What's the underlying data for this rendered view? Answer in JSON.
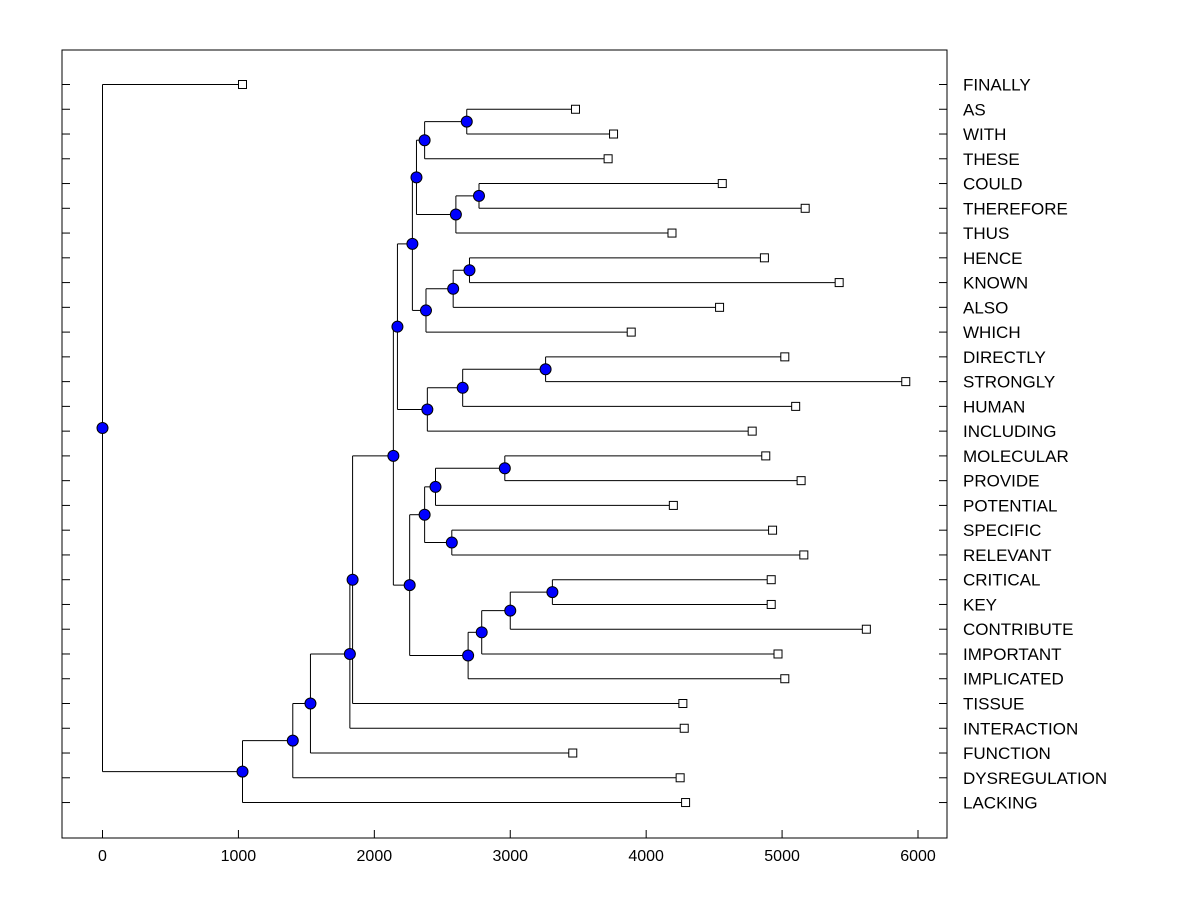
{
  "chart_data": {
    "type": "dendrogram",
    "orientation": "horizontal",
    "xlim": [
      -300,
      6200
    ],
    "x_ticks": [
      0,
      1000,
      2000,
      3000,
      4000,
      5000,
      6000
    ],
    "leaves": [
      {
        "label": "FINALLY",
        "value": 1030
      },
      {
        "label": "AS",
        "value": 3480
      },
      {
        "label": "WITH",
        "value": 3760
      },
      {
        "label": "THESE",
        "value": 3720
      },
      {
        "label": "COULD",
        "value": 4560
      },
      {
        "label": "THEREFORE",
        "value": 5170
      },
      {
        "label": "THUS",
        "value": 4190
      },
      {
        "label": "HENCE",
        "value": 4870
      },
      {
        "label": "KNOWN",
        "value": 5420
      },
      {
        "label": "ALSO",
        "value": 4540
      },
      {
        "label": "WHICH",
        "value": 3890
      },
      {
        "label": "DIRECTLY",
        "value": 5020
      },
      {
        "label": "STRONGLY",
        "value": 5910
      },
      {
        "label": "HUMAN",
        "value": 5100
      },
      {
        "label": "INCLUDING",
        "value": 4780
      },
      {
        "label": "MOLECULAR",
        "value": 4880
      },
      {
        "label": "PROVIDE",
        "value": 5140
      },
      {
        "label": "POTENTIAL",
        "value": 4200
      },
      {
        "label": "SPECIFIC",
        "value": 4930
      },
      {
        "label": "RELEVANT",
        "value": 5160
      },
      {
        "label": "CRITICAL",
        "value": 4920
      },
      {
        "label": "KEY",
        "value": 4920
      },
      {
        "label": "CONTRIBUTE",
        "value": 5620
      },
      {
        "label": "IMPORTANT",
        "value": 4970
      },
      {
        "label": "IMPLICATED",
        "value": 5020
      },
      {
        "label": "TISSUE",
        "value": 4270
      },
      {
        "label": "INTERACTION",
        "value": 4280
      },
      {
        "label": "FUNCTION",
        "value": 3460
      },
      {
        "label": "DYSREGULATION",
        "value": 4250
      },
      {
        "label": "LACKING",
        "value": 4290
      }
    ],
    "merges": [
      {
        "id": "m1",
        "value": 2680,
        "children": [
          "AS",
          "WITH"
        ]
      },
      {
        "id": "m2",
        "value": 2370,
        "children": [
          "m1",
          "THESE"
        ]
      },
      {
        "id": "m3",
        "value": 2770,
        "children": [
          "COULD",
          "THEREFORE"
        ]
      },
      {
        "id": "m4",
        "value": 2600,
        "children": [
          "m3",
          "THUS"
        ]
      },
      {
        "id": "m5",
        "value": 2310,
        "children": [
          "m2",
          "m4"
        ]
      },
      {
        "id": "m6",
        "value": 2700,
        "children": [
          "HENCE",
          "KNOWN"
        ]
      },
      {
        "id": "m7",
        "value": 2580,
        "children": [
          "m6",
          "ALSO"
        ]
      },
      {
        "id": "m8",
        "value": 2380,
        "children": [
          "m7",
          "WHICH"
        ]
      },
      {
        "id": "m9",
        "value": 2280,
        "children": [
          "m5",
          "m8"
        ]
      },
      {
        "id": "m10",
        "value": 3260,
        "children": [
          "DIRECTLY",
          "STRONGLY"
        ]
      },
      {
        "id": "m11",
        "value": 2650,
        "children": [
          "m10",
          "HUMAN"
        ]
      },
      {
        "id": "m12",
        "value": 2390,
        "children": [
          "m11",
          "INCLUDING"
        ]
      },
      {
        "id": "m13",
        "value": 2170,
        "children": [
          "m9",
          "m12"
        ]
      },
      {
        "id": "m14",
        "value": 2960,
        "children": [
          "MOLECULAR",
          "PROVIDE"
        ]
      },
      {
        "id": "m15",
        "value": 2450,
        "children": [
          "m14",
          "POTENTIAL"
        ]
      },
      {
        "id": "m16",
        "value": 2570,
        "children": [
          "SPECIFIC",
          "RELEVANT"
        ]
      },
      {
        "id": "m17",
        "value": 2370,
        "children": [
          "m15",
          "m16"
        ]
      },
      {
        "id": "m18",
        "value": 3310,
        "children": [
          "CRITICAL",
          "KEY"
        ]
      },
      {
        "id": "m19",
        "value": 3000,
        "children": [
          "m18",
          "CONTRIBUTE"
        ]
      },
      {
        "id": "m20",
        "value": 2790,
        "children": [
          "m19",
          "IMPORTANT"
        ]
      },
      {
        "id": "m21",
        "value": 2690,
        "children": [
          "m20",
          "IMPLICATED"
        ]
      },
      {
        "id": "m22",
        "value": 2260,
        "children": [
          "m17",
          "m21"
        ]
      },
      {
        "id": "m23",
        "value": 2140,
        "children": [
          "m13",
          "m22"
        ]
      },
      {
        "id": "m24",
        "value": 1840,
        "children": [
          "m23",
          "TISSUE"
        ]
      },
      {
        "id": "m25",
        "value": 1820,
        "children": [
          "m24",
          "INTERACTION"
        ]
      },
      {
        "id": "m26",
        "value": 1530,
        "children": [
          "m25",
          "FUNCTION"
        ]
      },
      {
        "id": "m27",
        "value": 1400,
        "children": [
          "m26",
          "DYSREGULATION"
        ]
      },
      {
        "id": "m28",
        "value": 1030,
        "children": [
          "m27",
          "LACKING"
        ]
      },
      {
        "id": "root",
        "value": 0,
        "children": [
          "FINALLY",
          "m28"
        ]
      }
    ],
    "colors": {
      "node_fill": "#0000ff",
      "leaf_fill": "#ffffff",
      "line": "#000000"
    }
  }
}
